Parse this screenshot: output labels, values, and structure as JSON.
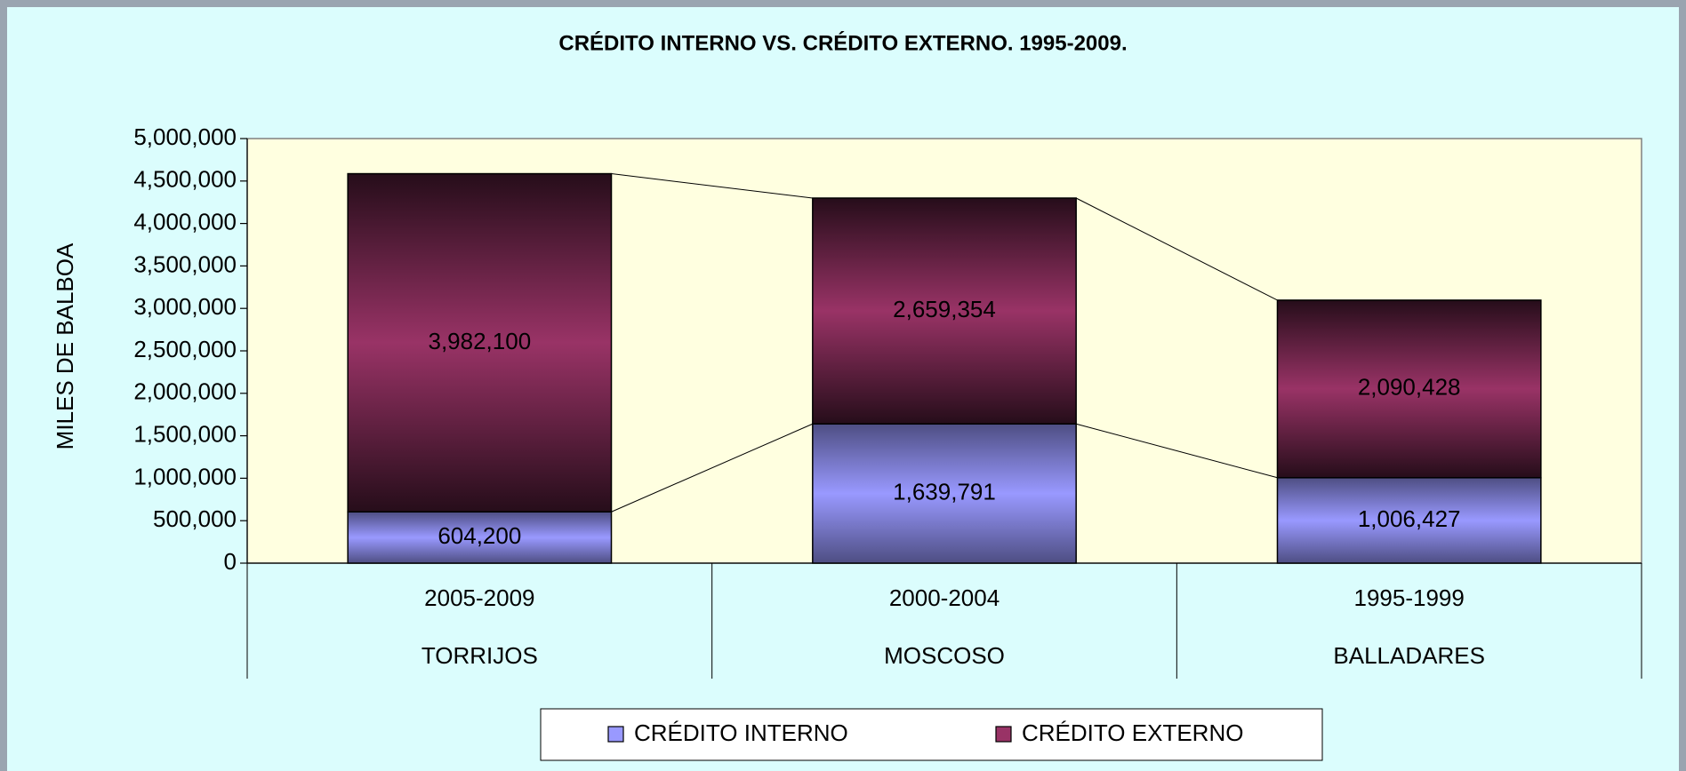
{
  "chart_data": {
    "type": "stacked_bar",
    "title": "CRÉDITO INTERNO VS. CRÉDITO EXTERNO. 1995-2009.",
    "y_label": "MILES DE BALBOA",
    "categories": [
      "2005-2009",
      "2000-2004",
      "1995-1999"
    ],
    "category_groups": [
      "TORRIJOS",
      "MOSCOSO",
      "BALLADARES"
    ],
    "series": [
      {
        "name": "CRÉDITO INTERNO",
        "color": "#9999ff",
        "values": [
          604200,
          1639791,
          1006427
        ],
        "value_labels": [
          "604,200",
          "1,639,791",
          "1,006,427"
        ]
      },
      {
        "name": "CRÉDITO EXTERNO",
        "color": "#993366",
        "values": [
          3982100,
          2659354,
          2090428
        ],
        "value_labels": [
          "3,982,100",
          "2,659,354",
          "2,090,428"
        ]
      }
    ],
    "ylim": [
      0,
      5000000
    ],
    "yticks": [
      0,
      {
        "value": 500000,
        "label": "500,000"
      },
      {
        "value": 1000000,
        "label": "1,000,000"
      },
      {
        "value": 1500000,
        "label": "1,500,000"
      },
      {
        "value": 2000000,
        "label": "2,000,000"
      },
      {
        "value": 2500000,
        "label": "2,500,000"
      },
      {
        "value": 3000000,
        "label": "3,000,000"
      },
      {
        "value": 3500000,
        "label": "3,500,000"
      },
      {
        "value": 4000000,
        "label": "4,000,000"
      },
      {
        "value": 4500000,
        "label": "4,500,000"
      },
      {
        "value": 5000000,
        "label": "5,000,000"
      }
    ],
    "legend": "bottom"
  }
}
